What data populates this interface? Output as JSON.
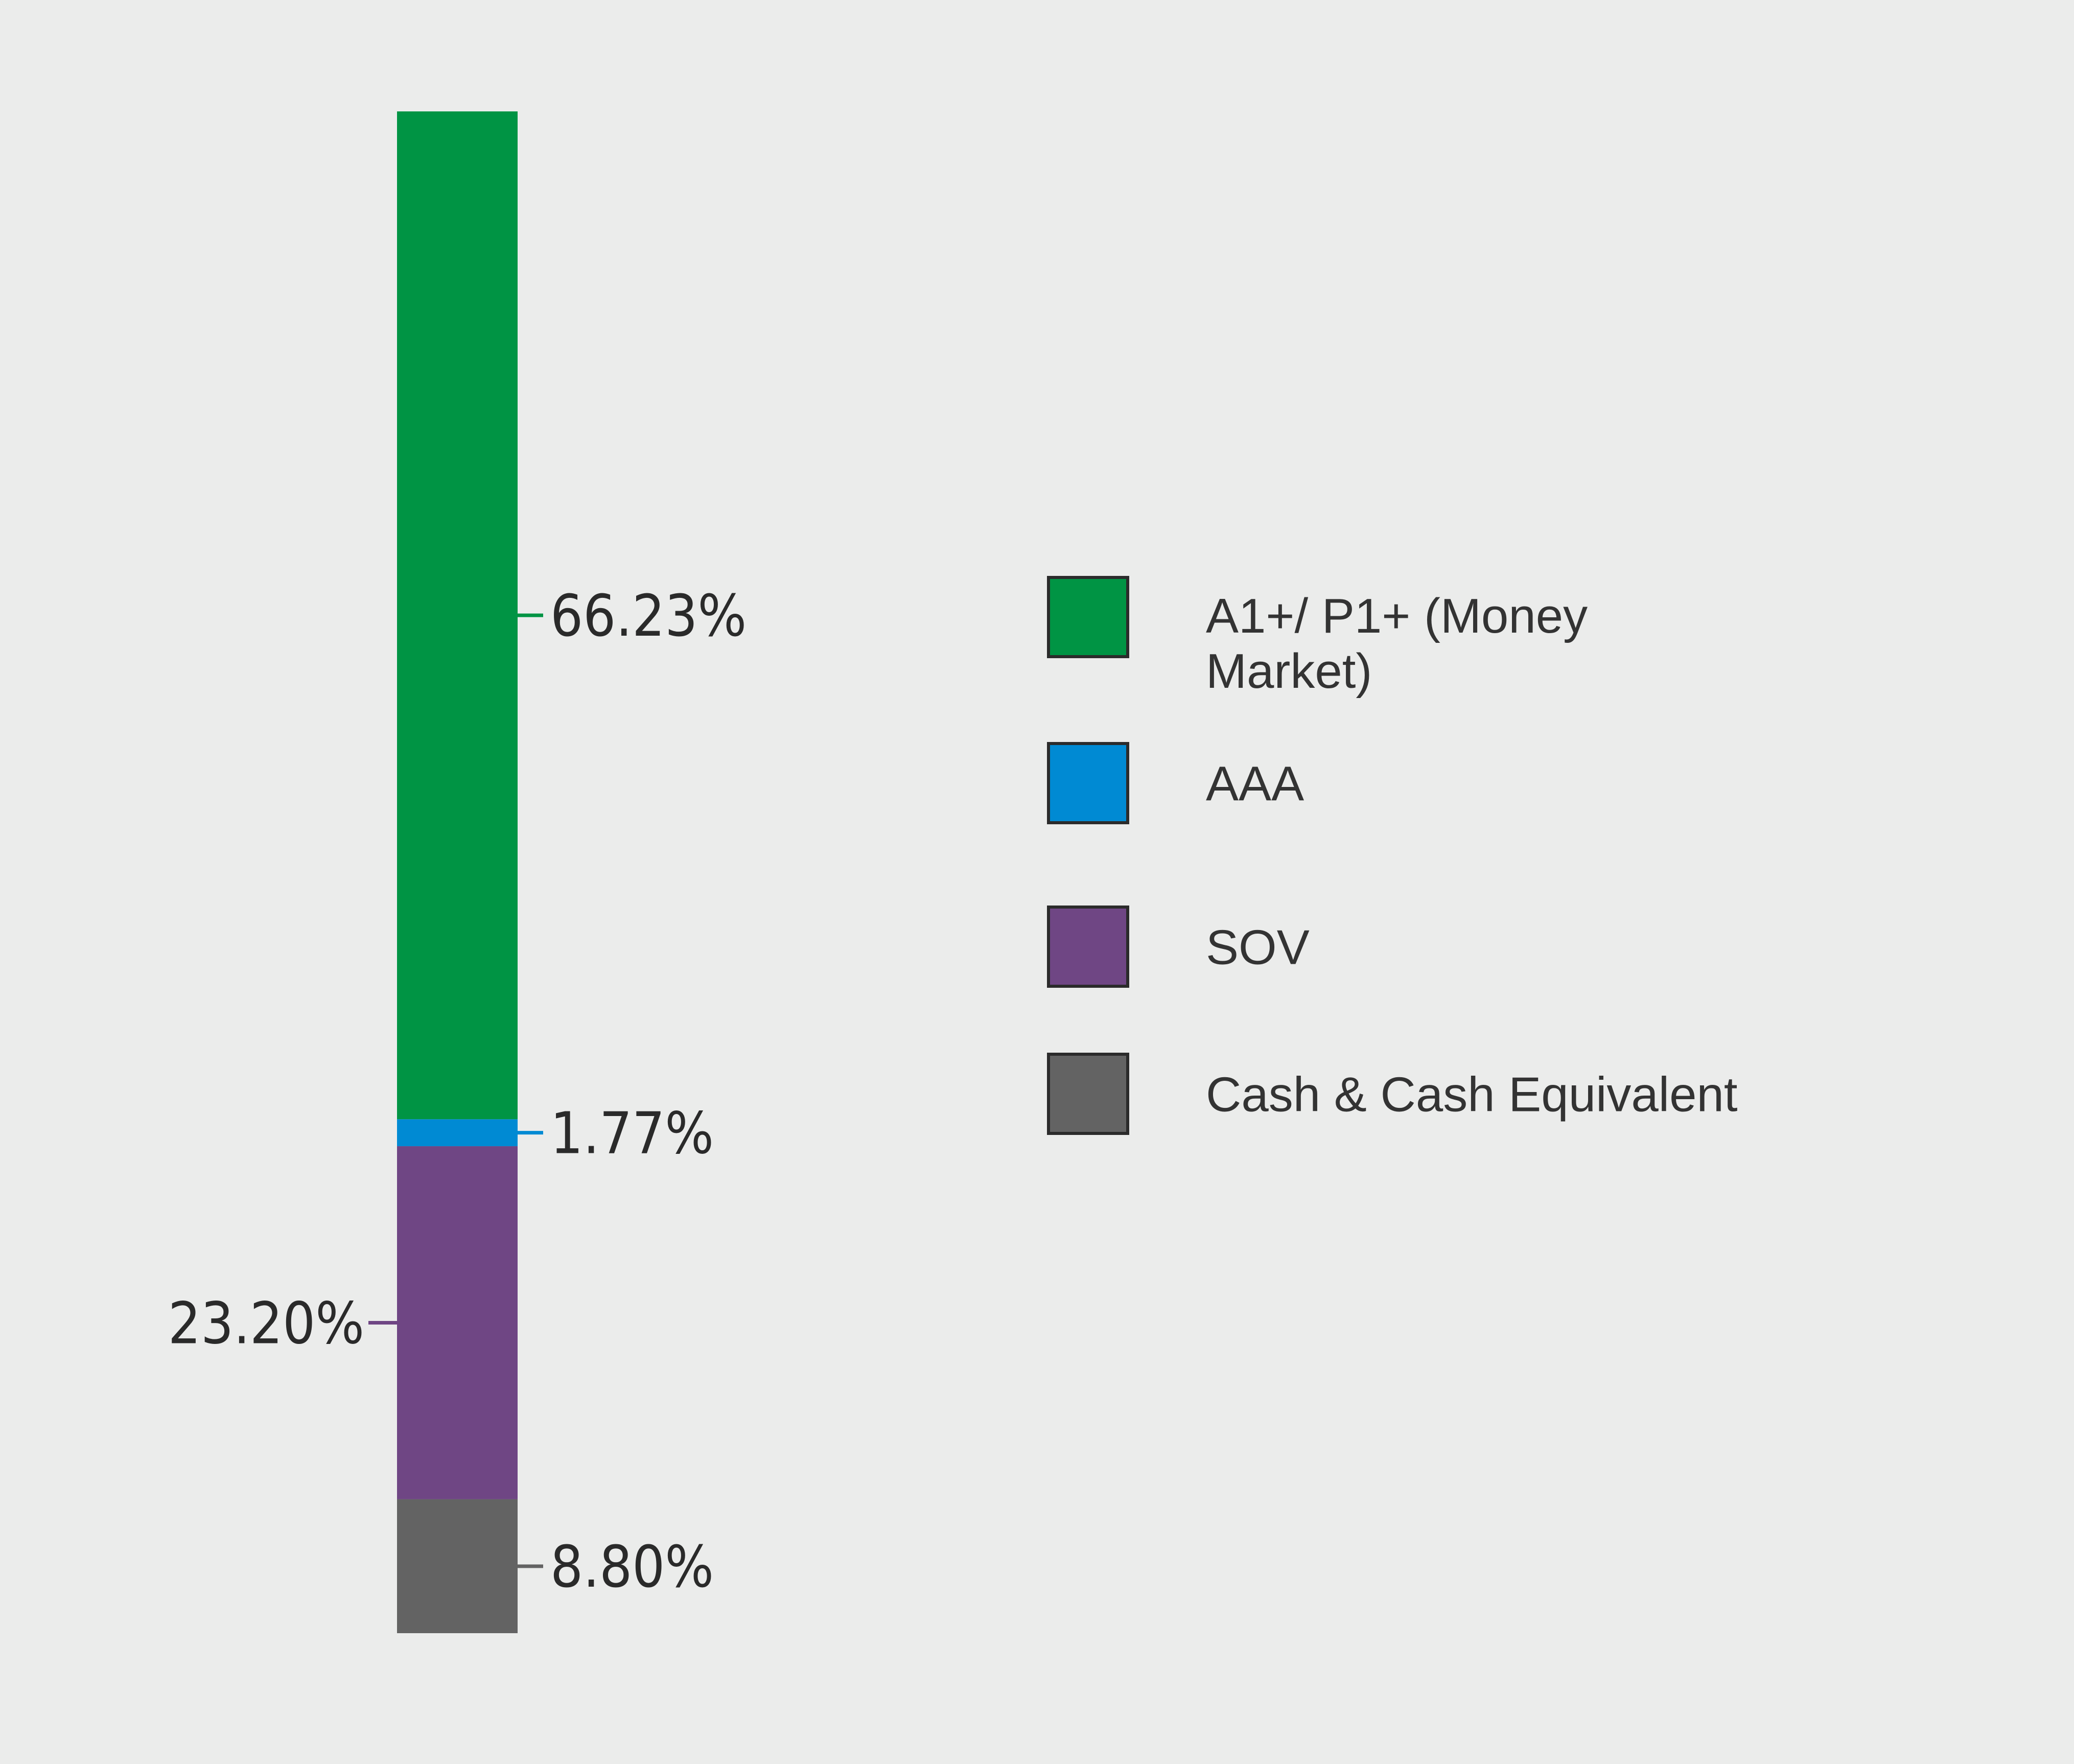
{
  "chart_data": {
    "type": "bar",
    "subtype": "single-stacked-column",
    "unit": "%",
    "series": [
      {
        "name": "A1+/ P1+ (Money Market)",
        "value": 66.23,
        "label": "66.23%",
        "color": "#009444",
        "legend_lines": [
          "A1+/ P1+ (Money",
          "Market)"
        ],
        "label_side": "right"
      },
      {
        "name": "AAA",
        "value": 1.77,
        "label": "1.77%",
        "color": "#008ad3",
        "legend_lines": [
          "AAA"
        ],
        "label_side": "right"
      },
      {
        "name": "SOV",
        "value": 23.2,
        "label": "23.20%",
        "color": "#6f4684",
        "legend_lines": [
          "SOV"
        ],
        "label_side": "left"
      },
      {
        "name": "Cash & Cash Equivalent",
        "value": 8.8,
        "label": "8.80%",
        "color": "#636363",
        "legend_lines": [
          "Cash & Cash Equivalent"
        ],
        "label_side": "right"
      }
    ],
    "ylim": [
      0,
      100
    ],
    "grid": false,
    "legend_position": "right"
  }
}
